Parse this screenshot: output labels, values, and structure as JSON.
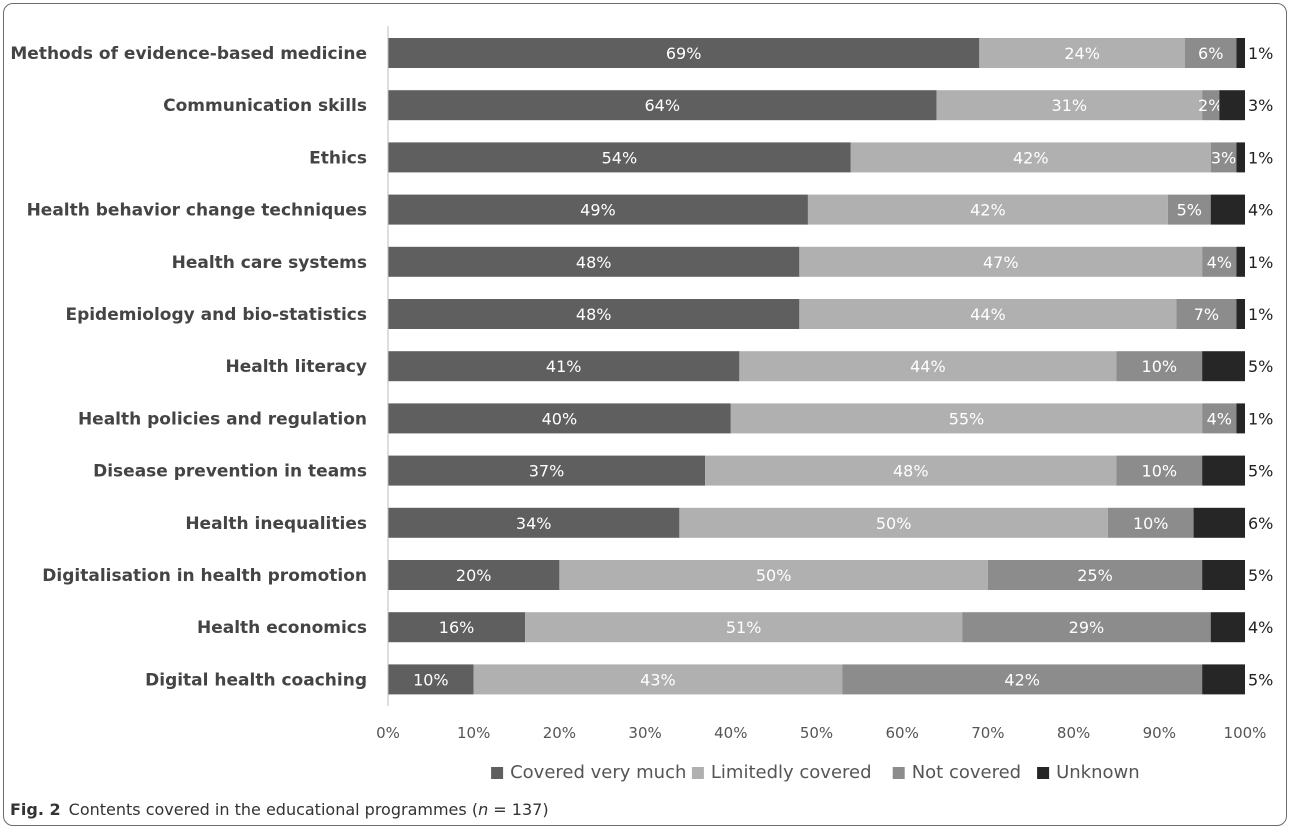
{
  "chart_data": {
    "type": "bar",
    "orientation": "horizontal",
    "stacked": true,
    "categories": [
      "Methods of evidence-based medicine",
      "Communication skills",
      "Ethics",
      "Health behavior change techniques",
      "Health care systems",
      "Epidemiology and bio-statistics",
      "Health literacy",
      "Health policies and regulation",
      "Disease prevention in teams",
      "Health inequalities",
      "Digitalisation in health promotion",
      "Health economics",
      "Digital health coaching"
    ],
    "series": [
      {
        "name": "Covered very much",
        "color": "#5f5f5f",
        "values": [
          69,
          64,
          54,
          49,
          48,
          48,
          41,
          40,
          37,
          34,
          20,
          16,
          10
        ]
      },
      {
        "name": "Limitedly covered",
        "color": "#b0b0b0",
        "values": [
          24,
          31,
          42,
          42,
          47,
          44,
          44,
          55,
          48,
          50,
          50,
          51,
          43
        ]
      },
      {
        "name": "Not covered",
        "color": "#8c8c8c",
        "values": [
          6,
          2,
          3,
          5,
          4,
          7,
          10,
          4,
          10,
          10,
          25,
          29,
          42
        ]
      },
      {
        "name": "Unknown",
        "color": "#262626",
        "values": [
          1,
          3,
          1,
          4,
          1,
          1,
          5,
          1,
          5,
          6,
          5,
          4,
          5
        ]
      }
    ],
    "xlim": [
      0,
      100
    ],
    "x_ticks": [
      "0%",
      "10%",
      "20%",
      "30%",
      "40%",
      "50%",
      "60%",
      "70%",
      "80%",
      "90%",
      "100%"
    ],
    "legend_position": "bottom",
    "grid": false
  },
  "caption": {
    "fig_label": "Fig. 2",
    "text_before": "Contents covered in the educational programmes (",
    "n_symbol": "n",
    "text_after": " = 137)"
  }
}
